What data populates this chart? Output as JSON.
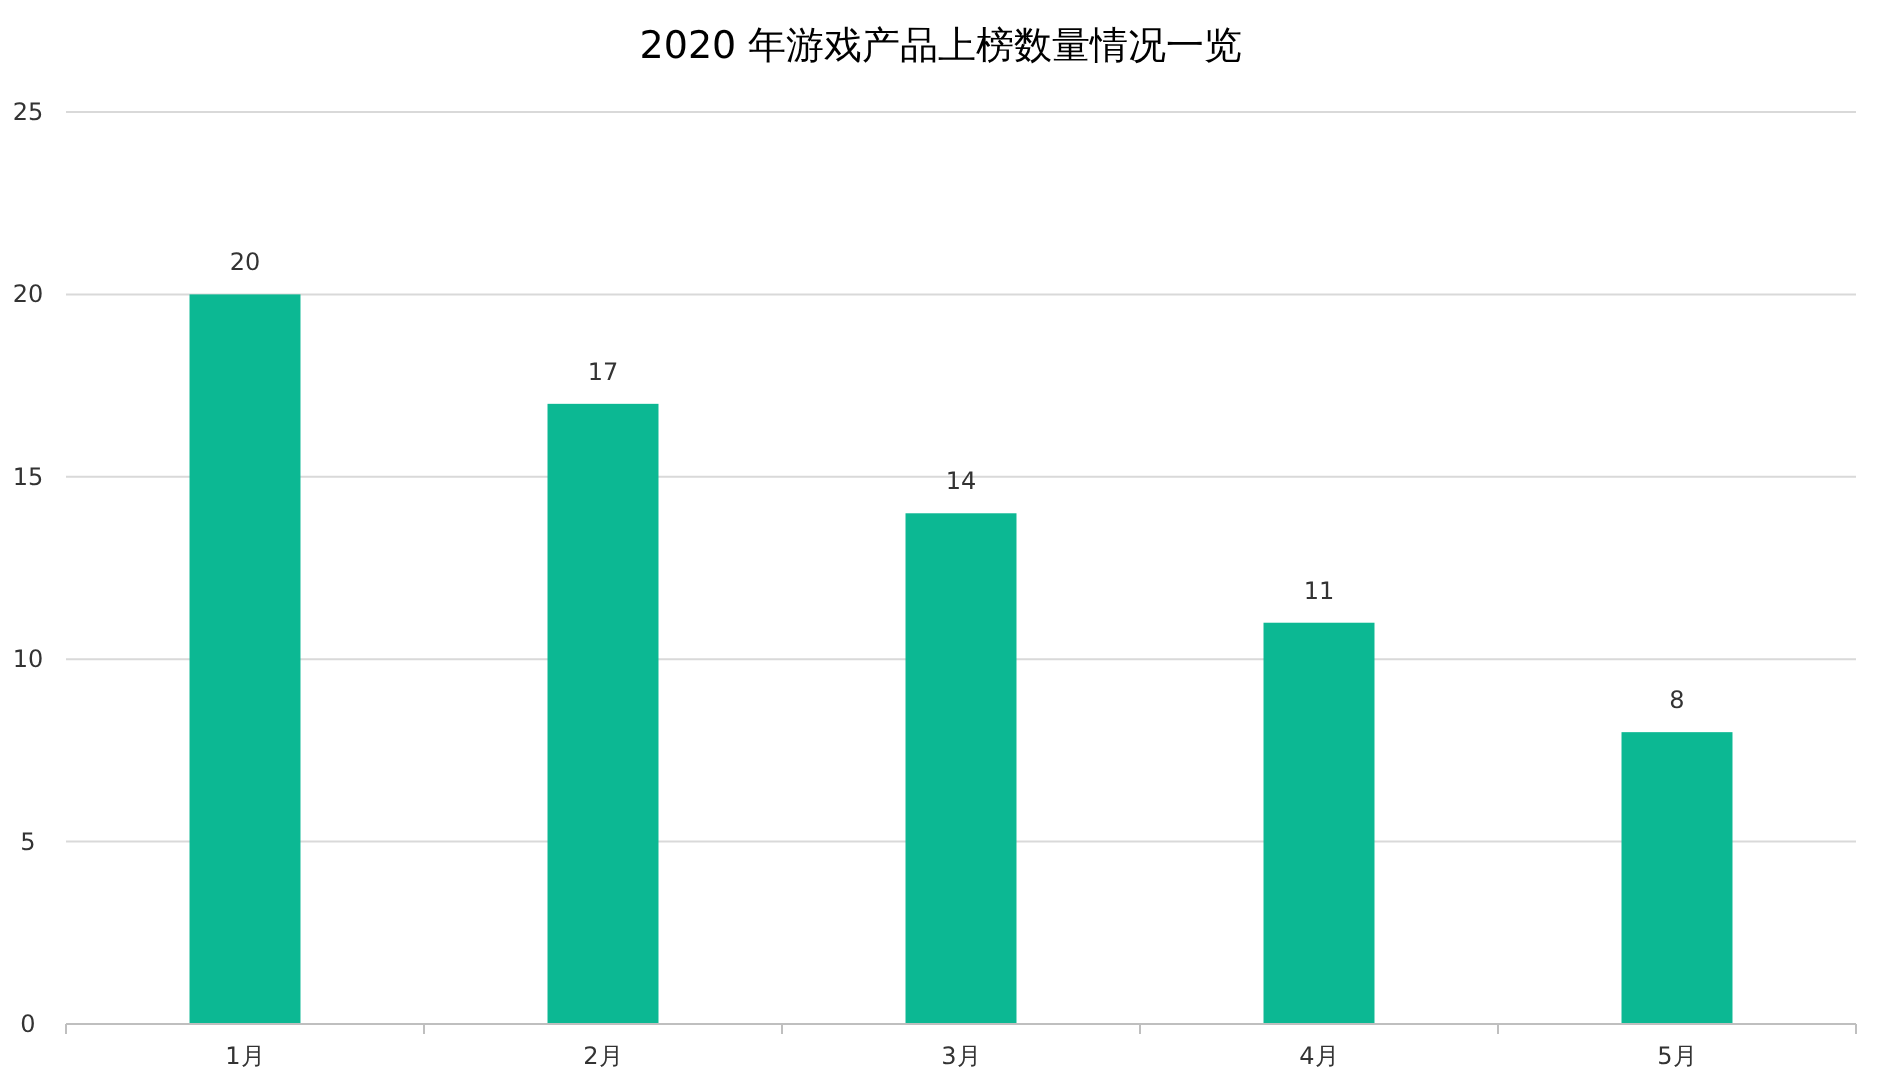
{
  "chart_data": {
    "type": "bar",
    "title": "2020 年游戏产品上榜数量情况一览",
    "categories": [
      "1月",
      "2月",
      "3月",
      "4月",
      "5月"
    ],
    "values": [
      20,
      17,
      14,
      11,
      8
    ],
    "color": "#0cb893",
    "ylim": [
      0,
      25
    ],
    "yticks": [
      0,
      5,
      10,
      15,
      20,
      25
    ],
    "grid": "y",
    "data_labels": true
  }
}
